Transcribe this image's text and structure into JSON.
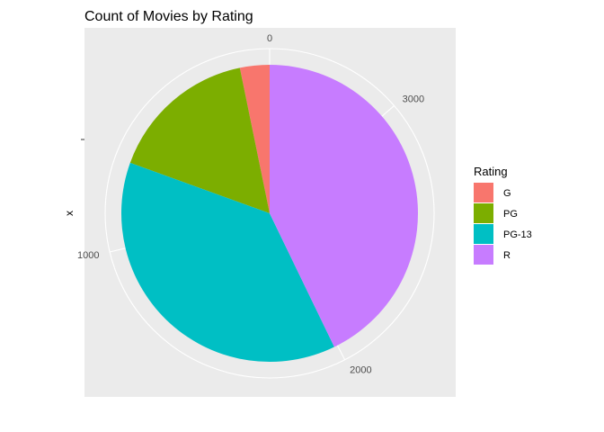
{
  "chart_data": {
    "type": "pie",
    "title": "Count of Movies by Rating",
    "ylabel": "x",
    "categories": [
      "G",
      "PG",
      "PG-13",
      "R"
    ],
    "values": [
      112,
      565,
      1310,
      1488
    ],
    "colors": [
      "#F8766D",
      "#7CAE00",
      "#00BFC4",
      "#C77CFF"
    ],
    "ticks": [
      {
        "value": 0,
        "label": "0"
      },
      {
        "value": 1000,
        "label": "1000"
      },
      {
        "value": 2000,
        "label": "2000"
      },
      {
        "value": 3000,
        "label": "3000"
      }
    ],
    "legend": {
      "title": "Rating",
      "position": "right"
    },
    "panel_background": "#EBEBEB",
    "grid": true
  }
}
